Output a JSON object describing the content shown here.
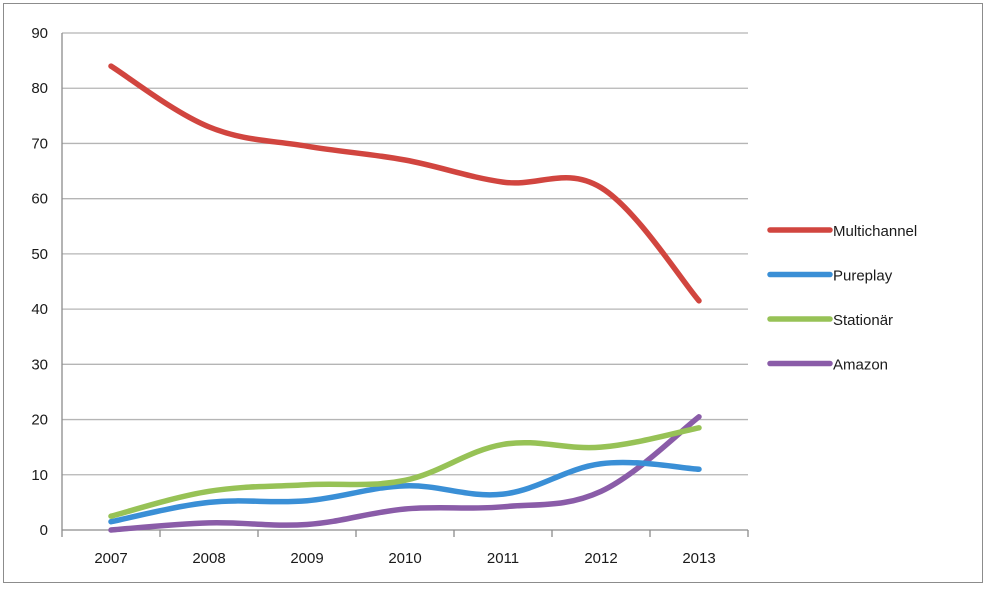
{
  "chart_data": {
    "type": "line",
    "title": "",
    "xlabel": "",
    "ylabel": "",
    "categories": [
      "2007",
      "2008",
      "2009",
      "2010",
      "2011",
      "2012",
      "2013"
    ],
    "ylim": [
      0,
      90
    ],
    "yticks": [
      0,
      10,
      20,
      30,
      40,
      50,
      60,
      70,
      80,
      90
    ],
    "grid": true,
    "smooth": true,
    "legend_position": "right",
    "series": [
      {
        "name": "Multichannel",
        "color": "#d1453f",
        "values": [
          84,
          73,
          69.5,
          67,
          63,
          62,
          41.5
        ]
      },
      {
        "name": "Pureplay",
        "color": "#3a8fd6",
        "values": [
          1.5,
          5,
          5.3,
          8,
          6.5,
          12,
          11
        ]
      },
      {
        "name": "Stationär",
        "color": "#97c256",
        "values": [
          2.5,
          7,
          8.2,
          9,
          15.5,
          15,
          18.5
        ]
      },
      {
        "name": "Amazon",
        "color": "#8a5ca8",
        "values": [
          0,
          1.3,
          1,
          3.8,
          4.2,
          7,
          20.5
        ]
      }
    ]
  }
}
